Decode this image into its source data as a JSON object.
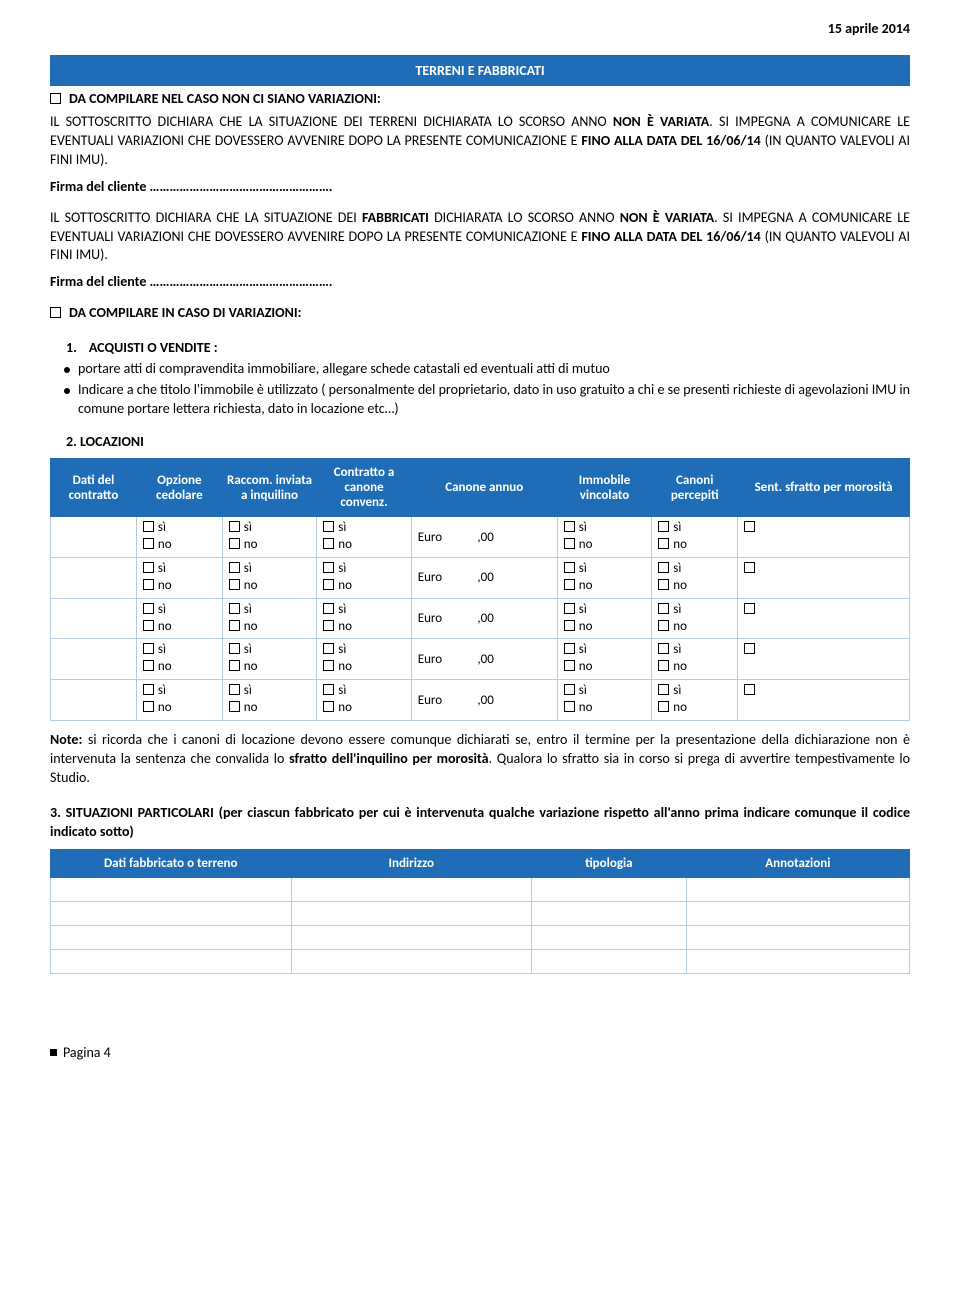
{
  "colors": {
    "brand": "#1f6db6",
    "border_cell": "#b9cde2"
  },
  "date": "15 aprile 2014",
  "section_title": "TERRENI E FABBRICATI",
  "cb1_label": "DA COMPILARE NEL CASO NON CI SIANO VARIAZIONI:",
  "para1a": "IL SOTTOSCRITTO DICHIARA CHE LA SITUAZIONE DEI TERRENI DICHIARATA LO SCORSO ANNO ",
  "para1b": "NON È VARIATA",
  "para1c": ". SI IMPEGNA A COMUNICARE LE EVENTUALI VARIAZIONI CHE DOVESSERO AVVENIRE DOPO LA PRESENTE COMUNICAZIONE E ",
  "para1d": "FINO ALLA DATA DEL 16/06/14",
  "para1e": " (IN QUANTO VALEVOLI AI FINI IMU).",
  "signature1": "Firma del cliente ……………………………………………….",
  "para2a": "IL SOTTOSCRITTO DICHIARA CHE LA SITUAZIONE DEI ",
  "para2b": "FABBRICATI",
  "para2c": " DICHIARATA LO SCORSO ANNO ",
  "para2d": "NON È VARIATA",
  "para2e": ". SI IMPEGNA A COMUNICARE LE EVENTUALI VARIAZIONI CHE DOVESSERO AVVENIRE DOPO LA PRESENTE COMUNICAZIONE E ",
  "para2f": "FINO ALLA DATA DEL 16/06/14",
  "para2g": " (IN QUANTO VALEVOLI AI FINI IMU).",
  "signature2": "Firma del cliente ……………………………………………….",
  "cb2_label": "DA COMPILARE IN CASO DI VARIAZIONI:",
  "acq_title": "ACQUISTI O VENDITE :",
  "acq_num": "1.",
  "acq_b1": "portare atti di compravendita immobiliare, allegare schede catastali ed eventuali atti di mutuo",
  "acq_b2": "Indicare a che titolo l'immobile è utilizzato ( personalmente del proprietario, dato in uso gratuito a chi e se presenti richieste di agevolazioni IMU in comune portare lettera richiesta, dato in locazione etc…)",
  "loc_title": "2. LOCAZIONI",
  "table1": {
    "headers": [
      "Dati del contratto",
      "Opzione cedolare",
      "Raccom. inviata a inquilino",
      "Contratto a canone convenz.",
      "Canone annuo",
      "Immobile vincolato",
      "Canoni percepiti",
      "Sent. sfratto per morosità"
    ],
    "col_widths": [
      "10%",
      "10%",
      "11%",
      "11%",
      "17%",
      "11%",
      "10%",
      "20%"
    ],
    "si_label": "sì",
    "no_label": "no",
    "euro_label": "Euro",
    "euro_suffix": ",00",
    "row_count": 5
  },
  "note_prefix": "Note:",
  "note_a": " si ricorda che i canoni di locazione devono essere comunque dichiarati se, entro il termine per la presentazione della dichiarazione non è intervenuta la sentenza che convalida lo ",
  "note_b": "sfratto dell'inquilino per morosità",
  "note_c": ". Qualora lo sfratto sia in corso si prega di avvertire tempestivamente lo Studio.",
  "p3a": "3. SITUAZIONI PARTICOLARI (per ciascun fabbricato per cui è intervenuta qualche variazione rispetto all'anno prima  indicare comunque il codice indicato sotto)",
  "table2": {
    "headers": [
      "Dati fabbricato o terreno",
      "Indirizzo",
      "tipologia",
      "Annotazioni"
    ],
    "col_widths": [
      "28%",
      "28%",
      "18%",
      "26%"
    ],
    "row_count": 4
  },
  "footer": "Pagina 4"
}
